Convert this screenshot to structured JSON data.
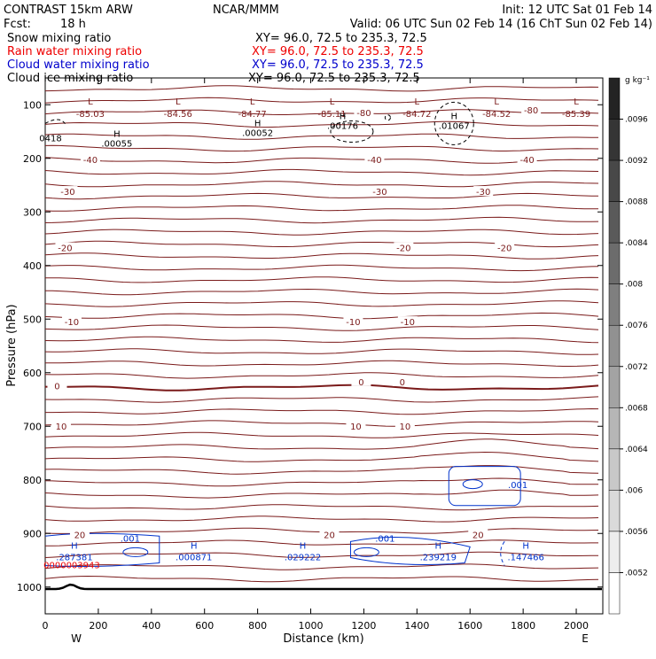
{
  "header": {
    "model": "CONTRAST 15km ARW",
    "org": "NCAR/MMM",
    "init": "Init: 12 UTC Sat 01 Feb 14",
    "fcst_label": "Fcst:",
    "fcst_value": "18 h",
    "valid": "Valid: 06 UTC Sun 02 Feb 14 (16 ChT Sun 02 Feb 14)",
    "legend": [
      {
        "name": "Snow mixing ratio",
        "xy": "XY=   96.0, 72.5 to 235.3, 72.5",
        "color": "#000000"
      },
      {
        "name": "Rain water mixing ratio",
        "xy": "XY=   96.0, 72.5 to 235.3, 72.5",
        "color": "#ee0000"
      },
      {
        "name": "Cloud water mixing ratio",
        "xy": "XY=   96.0, 72.5 to 235.3, 72.5",
        "color": "#0000cc"
      },
      {
        "name": "Cloud ice mixing ratio",
        "xy": "XY=   96.0, 72.5 to 235.3, 72.5",
        "color": "#000000"
      }
    ]
  },
  "chart_data": {
    "type": "line",
    "xlabel": "Distance (km)",
    "ylabel": "Pressure (hPa)",
    "x_ticks": [
      0,
      200,
      400,
      600,
      800,
      1000,
      1200,
      1400,
      1600,
      1800,
      2000
    ],
    "y_ticks": [
      100,
      200,
      300,
      400,
      500,
      600,
      700,
      800,
      900,
      1000
    ],
    "xlim": [
      0,
      2100
    ],
    "ylim": [
      50,
      1050
    ],
    "y_direction": "pressure increasing downward",
    "direction_left": "W",
    "direction_right": "E",
    "colorbar": {
      "unit": "g kg⁻¹",
      "labels": [
        ".0096",
        ".0092",
        ".0088",
        ".0084",
        ".008",
        ".0076",
        ".0072",
        ".0068",
        ".0064",
        ".006",
        ".0056",
        ".0052"
      ]
    },
    "temperature_contour_labels": [
      {
        "text": "-80",
        "x": 1200,
        "p": 118
      },
      {
        "text": "-80",
        "x": 1830,
        "p": 113
      },
      {
        "text": "-40",
        "x": 170,
        "p": 205
      },
      {
        "text": "-40",
        "x": 1240,
        "p": 205
      },
      {
        "text": "-40",
        "x": 1815,
        "p": 205
      },
      {
        "text": "-30",
        "x": 85,
        "p": 265
      },
      {
        "text": "-30",
        "x": 1260,
        "p": 265
      },
      {
        "text": "-30",
        "x": 1650,
        "p": 265
      },
      {
        "text": "-20",
        "x": 75,
        "p": 370
      },
      {
        "text": "-20",
        "x": 1350,
        "p": 370
      },
      {
        "text": "-20",
        "x": 1730,
        "p": 370
      },
      {
        "text": "-10",
        "x": 100,
        "p": 508
      },
      {
        "text": "-10",
        "x": 1160,
        "p": 508
      },
      {
        "text": "-10",
        "x": 1365,
        "p": 508
      },
      {
        "text": "0",
        "x": 45,
        "p": 628
      },
      {
        "text": "0",
        "x": 1190,
        "p": 620
      },
      {
        "text": "0",
        "x": 1345,
        "p": 620
      },
      {
        "text": "10",
        "x": 60,
        "p": 703
      },
      {
        "text": "10",
        "x": 1170,
        "p": 703
      },
      {
        "text": "10",
        "x": 1355,
        "p": 703
      },
      {
        "text": "20",
        "x": 130,
        "p": 905
      },
      {
        "text": "20",
        "x": 1070,
        "p": 905
      },
      {
        "text": "20",
        "x": 1630,
        "p": 905
      }
    ],
    "lows": [
      {
        "label": "L",
        "value": "-85.03",
        "x": 170,
        "p": 103
      },
      {
        "label": "L",
        "value": "-84.56",
        "x": 500,
        "p": 103
      },
      {
        "label": "L",
        "value": "-84.77",
        "x": 780,
        "p": 103
      },
      {
        "label": "L",
        "value": "-85.11",
        "x": 1080,
        "p": 103
      },
      {
        "label": "L",
        "value": "-84.72",
        "x": 1400,
        "p": 103
      },
      {
        "label": "L",
        "value": "-84.52",
        "x": 1700,
        "p": 103
      },
      {
        "label": "L",
        "value": "-85.39",
        "x": 2000,
        "p": 103
      }
    ],
    "ice_highs": [
      {
        "label": "",
        "value": "0418",
        "x": 20,
        "p": 168
      },
      {
        "label": "H",
        "value": ".00055",
        "x": 270,
        "p": 178
      },
      {
        "label": "H",
        "value": ".00052",
        "x": 800,
        "p": 158
      },
      {
        "label": "H",
        "value": ".00176",
        "x": 1120,
        "p": 145
      },
      {
        "label": "H",
        "value": ".01067",
        "x": 1540,
        "p": 145
      }
    ],
    "cloud_water_highs": [
      {
        "label": "H",
        "value": ".287381",
        "x": 110,
        "p": 945
      },
      {
        "label": "H",
        "value": ".000871",
        "x": 560,
        "p": 945
      },
      {
        "label": "H",
        "value": ".029222",
        "x": 970,
        "p": 945
      },
      {
        "label": "H",
        "value": ".239219",
        "x": 1480,
        "p": 945
      },
      {
        "label": "H",
        "value": ".147466",
        "x": 1810,
        "p": 945
      }
    ],
    "cloud_water_contour_labels": [
      {
        "text": ".001",
        "x": 320,
        "p": 910
      },
      {
        "text": ".001",
        "x": 1280,
        "p": 910
      },
      {
        "text": ".001",
        "x": 1780,
        "p": 810
      }
    ],
    "rain_high": {
      "value": "0000003943",
      "x": 100,
      "p": 960
    }
  }
}
